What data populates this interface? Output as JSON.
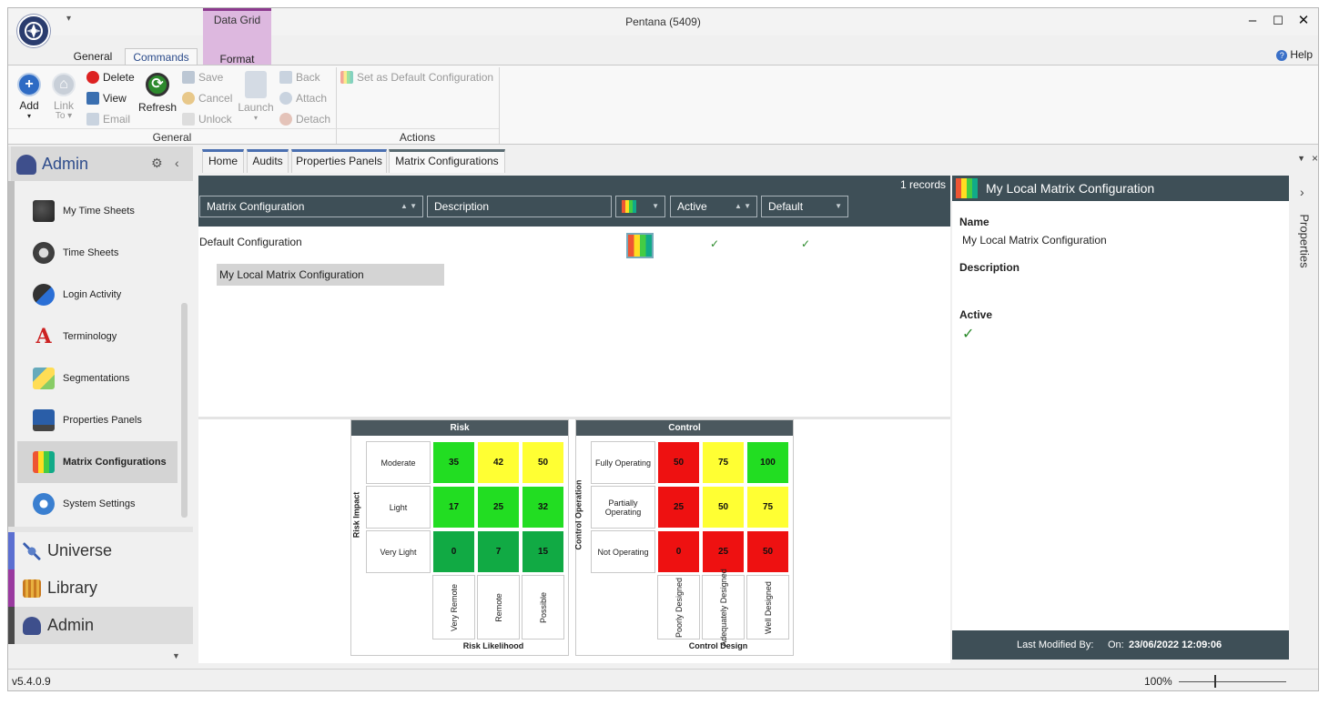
{
  "window": {
    "title": "Pentana (5409)",
    "minimize_glyph": "–",
    "maximize_glyph": "☐",
    "close_glyph": "✕",
    "qat_glyph": "▾"
  },
  "ribbon": {
    "contextual_tab": "Data Grid",
    "tabs": [
      "General",
      "Commands",
      "Format"
    ],
    "help": "Help",
    "help_glyph": "?",
    "buttons": {
      "add": "Add",
      "link_to": "Link",
      "link_to_2": "To ▾",
      "delete": "Delete",
      "view": "View",
      "email": "Email",
      "refresh": "Refresh",
      "save": "Save",
      "cancel": "Cancel",
      "unlock": "Unlock",
      "launch": "Launch",
      "back": "Back",
      "attach": "Attach",
      "detach": "Detach",
      "set_default": "Set as Default Configuration"
    },
    "groups": [
      "General",
      "Actions"
    ]
  },
  "nav": {
    "title": "Admin",
    "items": [
      {
        "label": "My Time Sheets",
        "icon": "timesheet-user-icon"
      },
      {
        "label": "Time Sheets",
        "icon": "clock-icon"
      },
      {
        "label": "Login Activity",
        "icon": "user-globe-icon"
      },
      {
        "label": "Terminology",
        "icon": "font-icon"
      },
      {
        "label": "Segmentations",
        "icon": "segments-icon"
      },
      {
        "label": "Properties Panels",
        "icon": "monitor-icon"
      },
      {
        "label": "Matrix Configurations",
        "icon": "matrix-icon",
        "selected": true
      },
      {
        "label": "System Settings",
        "icon": "gear-icon"
      }
    ],
    "sections": [
      {
        "label": "Universe",
        "color": "#5b6fd1"
      },
      {
        "label": "Library",
        "color": "#9a3aa0"
      },
      {
        "label": "Admin",
        "color": "#4a4a4a"
      }
    ]
  },
  "doc_tabs": [
    "Home",
    "Audits",
    "Properties Panels",
    "Matrix Configurations"
  ],
  "grid": {
    "record_count": "1 records",
    "columns": [
      "Matrix Configuration",
      "Description",
      "Active",
      "Default"
    ],
    "rows": [
      {
        "name": "Default Configuration",
        "active": "✓",
        "default": "✓"
      }
    ],
    "child_row": "My Local Matrix Configuration"
  },
  "risk_matrix": {
    "title": "Risk",
    "y_axis": "Risk Impact",
    "x_axis": "Risk Likelihood",
    "rows": [
      "Moderate",
      "Light",
      "Very Light"
    ],
    "cols": [
      "Very Remote",
      "Remote",
      "Possible"
    ],
    "values": [
      [
        "35",
        "42",
        "50"
      ],
      [
        "17",
        "25",
        "32"
      ],
      [
        "0",
        "7",
        "15"
      ]
    ],
    "colors": [
      [
        "#22dd22",
        "#ffff33",
        "#ffff33"
      ],
      [
        "#22dd22",
        "#22dd22",
        "#22dd22"
      ],
      [
        "#11aa44",
        "#11aa44",
        "#11aa44"
      ]
    ]
  },
  "control_matrix": {
    "title": "Control",
    "y_axis": "Control Operation",
    "x_axis": "Control Design",
    "rows": [
      "Fully Operating",
      "Partially Operating",
      "Not Operating"
    ],
    "cols": [
      "Poorly Designed",
      "Adequately Designed",
      "Well Designed"
    ],
    "values": [
      [
        "50",
        "75",
        "100"
      ],
      [
        "25",
        "50",
        "75"
      ],
      [
        "0",
        "25",
        "50"
      ]
    ],
    "colors": [
      [
        "#ee1111",
        "#ffff33",
        "#22dd22"
      ],
      [
        "#ee1111",
        "#ffff33",
        "#ffff33"
      ],
      [
        "#ee1111",
        "#ee1111",
        "#ee1111"
      ]
    ]
  },
  "properties": {
    "header": "My Local Matrix Configuration",
    "name_label": "Name",
    "name_value": "My Local Matrix Configuration",
    "description_label": "Description",
    "active_label": "Active",
    "active_value": "✓",
    "footer_modified": "Last Modified By:",
    "footer_on": "On:",
    "footer_date": "23/06/2022 12:09:06",
    "side_tab": "Properties",
    "collapse_glyph": "›"
  },
  "status": {
    "version": "v5.4.0.9",
    "zoom": "100%"
  }
}
